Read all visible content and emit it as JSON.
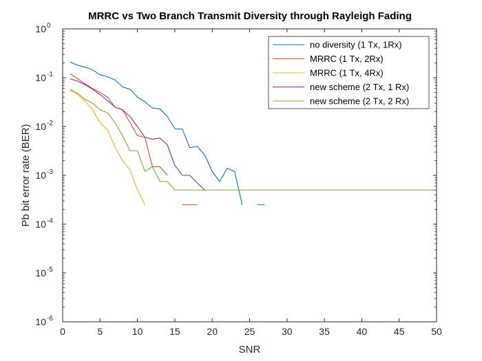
{
  "chart_data": {
    "type": "line",
    "title": "MRRC vs Two Branch Transmit Diversity through Rayleigh Fading",
    "xlabel": "SNR",
    "ylabel": "Pb bit error rate (BER)",
    "xlim": [
      0,
      50
    ],
    "ylim": [
      1e-06,
      1
    ],
    "yscale": "log",
    "xticks": [
      "0",
      "5",
      "10",
      "15",
      "20",
      "25",
      "30",
      "35",
      "40",
      "45",
      "50"
    ],
    "yticks": [
      {
        "base": "10",
        "exp": "0",
        "value": 1
      },
      {
        "base": "10",
        "exp": "-1",
        "value": 0.1
      },
      {
        "base": "10",
        "exp": "-2",
        "value": 0.01
      },
      {
        "base": "10",
        "exp": "-3",
        "value": 0.001
      },
      {
        "base": "10",
        "exp": "-4",
        "value": 0.0001
      },
      {
        "base": "10",
        "exp": "-5",
        "value": 1e-05
      },
      {
        "base": "10",
        "exp": "-6",
        "value": 1e-06
      }
    ],
    "legend_position": "top-right",
    "grid": false,
    "series": [
      {
        "name": "no diversity (1 Tx, 1Rx)",
        "color": "#0072BD",
        "points": [
          [
            1,
            0.21
          ],
          [
            2,
            0.18
          ],
          [
            3,
            0.165
          ],
          [
            4,
            0.145
          ],
          [
            5,
            0.115
          ],
          [
            6,
            0.105
          ],
          [
            7,
            0.09
          ],
          [
            8,
            0.065
          ],
          [
            9,
            0.058
          ],
          [
            10,
            0.04
          ],
          [
            11,
            0.032
          ],
          [
            12,
            0.024
          ],
          [
            13,
            0.023
          ],
          [
            14,
            0.016
          ],
          [
            15,
            0.009
          ],
          [
            16,
            0.0088
          ],
          [
            17,
            0.0037
          ],
          [
            18,
            0.0039
          ],
          [
            19,
            0.0026
          ],
          [
            20,
            0.0012
          ],
          [
            21,
            0.00075
          ],
          [
            22,
            0.0014
          ],
          [
            23,
            0.0012
          ],
          [
            24,
            0.00025
          ],
          null,
          [
            26,
            0.00025
          ],
          [
            27,
            0.00025
          ]
        ]
      },
      {
        "name": "MRRC (1 Tx, 2Rx)",
        "color": "#D95319",
        "points": [
          [
            1,
            0.12
          ],
          [
            2,
            0.095
          ],
          [
            3,
            0.075
          ],
          [
            4,
            0.06
          ],
          [
            5,
            0.05
          ],
          [
            6,
            0.04
          ],
          [
            7,
            0.025
          ],
          [
            8,
            0.022
          ],
          [
            9,
            0.012
          ],
          [
            10,
            0.0065
          ],
          [
            11,
            0.006
          ],
          [
            12,
            0.0015
          ],
          [
            13,
            0.0015
          ],
          [
            14,
            0.001
          ],
          null,
          [
            16,
            0.00025
          ],
          [
            17,
            0.00025
          ],
          [
            18,
            0.00025
          ]
        ]
      },
      {
        "name": "MRRC (1 Tx, 4Rx)",
        "color": "#EDB120",
        "points": [
          [
            1,
            0.06
          ],
          [
            2,
            0.045
          ],
          [
            3,
            0.033
          ],
          [
            4,
            0.022
          ],
          [
            5,
            0.012
          ],
          [
            6,
            0.0085
          ],
          [
            7,
            0.0038
          ],
          [
            8,
            0.002
          ],
          [
            9,
            0.0013
          ],
          [
            10,
            0.0005
          ],
          [
            11,
            0.00025
          ]
        ]
      },
      {
        "name": "new scheme (2 Tx, 1 Rx)",
        "color": "#7E2F8E",
        "points": [
          [
            1,
            0.095
          ],
          [
            2,
            0.085
          ],
          [
            3,
            0.072
          ],
          [
            4,
            0.058
          ],
          [
            5,
            0.045
          ],
          [
            6,
            0.034
          ],
          [
            7,
            0.025
          ],
          [
            8,
            0.022
          ],
          [
            9,
            0.016
          ],
          [
            10,
            0.01
          ],
          [
            11,
            0.006
          ],
          [
            12,
            0.0055
          ],
          [
            13,
            0.0058
          ],
          [
            14,
            0.0042
          ],
          [
            15,
            0.0016
          ],
          [
            16,
            0.001
          ],
          [
            17,
            0.001
          ],
          [
            18,
            0.0007
          ],
          [
            19,
            0.0005
          ]
        ]
      },
      {
        "name": "new scheme (2 Tx, 2 Rx)",
        "color": "#77AC30",
        "points": [
          [
            1,
            0.055
          ],
          [
            2,
            0.048
          ],
          [
            3,
            0.036
          ],
          [
            4,
            0.03
          ],
          [
            5,
            0.022
          ],
          [
            6,
            0.019
          ],
          [
            7,
            0.012
          ],
          [
            8,
            0.0065
          ],
          [
            9,
            0.0032
          ],
          [
            10,
            0.0032
          ],
          [
            11,
            0.0012
          ],
          [
            12,
            0.0015
          ],
          [
            13,
            0.00075
          ],
          [
            14,
            0.00075
          ],
          [
            15,
            0.0005
          ],
          [
            20,
            0.0005
          ],
          [
            25,
            0.0005
          ],
          [
            30,
            0.0005
          ],
          [
            35,
            0.0005
          ],
          [
            40,
            0.0005
          ],
          [
            45,
            0.0005
          ],
          [
            50,
            0.0005
          ]
        ]
      }
    ]
  }
}
